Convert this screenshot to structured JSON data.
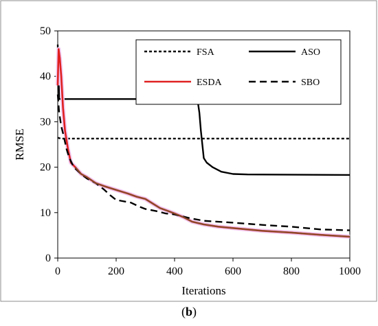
{
  "caption": {
    "open": "(",
    "letter": "b",
    "close": ")"
  },
  "chart_data": {
    "type": "line",
    "xlabel": "Iterations",
    "ylabel": "RMSE",
    "xlim": [
      0,
      1000
    ],
    "ylim": [
      0,
      50
    ],
    "xticks": [
      0,
      200,
      400,
      600,
      800,
      1000
    ],
    "yticks": [
      0,
      10,
      20,
      30,
      40,
      50
    ],
    "grid": false,
    "legend": "top-right",
    "series": [
      {
        "name": "FSA",
        "color": "#000000",
        "style": "dotted",
        "points": [
          [
            0,
            26.5
          ],
          [
            10,
            26.3
          ],
          [
            1000,
            26.3
          ]
        ]
      },
      {
        "name": "ASO",
        "color": "#000000",
        "style": "solid",
        "points": [
          [
            0,
            47
          ],
          [
            3,
            40
          ],
          [
            5,
            35
          ],
          [
            370,
            35
          ],
          [
            375,
            34.2
          ],
          [
            480,
            34.2
          ],
          [
            485,
            32
          ],
          [
            490,
            28
          ],
          [
            495,
            25
          ],
          [
            500,
            22
          ],
          [
            510,
            21
          ],
          [
            530,
            20
          ],
          [
            560,
            19
          ],
          [
            600,
            18.5
          ],
          [
            650,
            18.4
          ],
          [
            1000,
            18.3
          ]
        ]
      },
      {
        "name": "ESDA",
        "color": "#e02020",
        "style": "solid",
        "points": [
          [
            0,
            38
          ],
          [
            3,
            46
          ],
          [
            7,
            44
          ],
          [
            12,
            40
          ],
          [
            18,
            33
          ],
          [
            25,
            28
          ],
          [
            35,
            24
          ],
          [
            45,
            21
          ],
          [
            60,
            20
          ],
          [
            80,
            18.5
          ],
          [
            100,
            17.8
          ],
          [
            130,
            16.5
          ],
          [
            160,
            15.8
          ],
          [
            200,
            15
          ],
          [
            240,
            14.2
          ],
          [
            270,
            13.5
          ],
          [
            300,
            13
          ],
          [
            330,
            11.8
          ],
          [
            350,
            11
          ],
          [
            380,
            10.3
          ],
          [
            400,
            9.8
          ],
          [
            430,
            9
          ],
          [
            460,
            8
          ],
          [
            500,
            7.4
          ],
          [
            550,
            6.9
          ],
          [
            600,
            6.6
          ],
          [
            700,
            6
          ],
          [
            800,
            5.6
          ],
          [
            900,
            5.1
          ],
          [
            1000,
            4.7
          ]
        ]
      },
      {
        "name": "SBO",
        "color": "#000000",
        "style": "dashed",
        "points": [
          [
            0,
            36
          ],
          [
            5,
            32
          ],
          [
            12,
            29
          ],
          [
            20,
            27
          ],
          [
            30,
            24
          ],
          [
            40,
            22
          ],
          [
            55,
            20
          ],
          [
            80,
            18.5
          ],
          [
            100,
            17.5
          ],
          [
            130,
            16.5
          ],
          [
            160,
            15
          ],
          [
            180,
            13.8
          ],
          [
            200,
            12.8
          ],
          [
            250,
            12.2
          ],
          [
            280,
            11.3
          ],
          [
            300,
            10.8
          ],
          [
            340,
            10.3
          ],
          [
            370,
            9.8
          ],
          [
            400,
            9.6
          ],
          [
            450,
            8.8
          ],
          [
            500,
            8.2
          ],
          [
            600,
            7.8
          ],
          [
            700,
            7.3
          ],
          [
            800,
            6.9
          ],
          [
            900,
            6.3
          ],
          [
            1000,
            6.1
          ]
        ]
      }
    ]
  }
}
